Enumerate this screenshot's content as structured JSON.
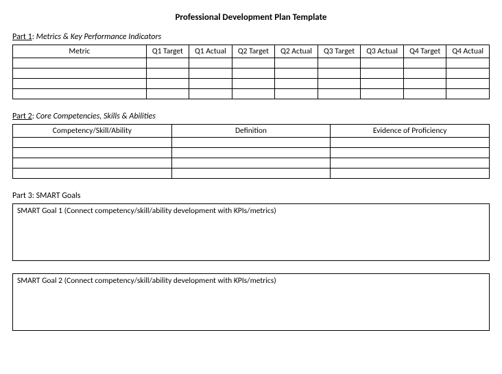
{
  "title": "Professional Development Plan Template",
  "part1": {
    "label": "Part 1",
    "desc": "Metrics & Key Performance Indicators",
    "columns": [
      "Metric",
      "Q1 Target",
      "Q1 Actual",
      "Q2 Target",
      "Q2 Actual",
      "Q3 Target",
      "Q3 Actual",
      "Q4 Target",
      "Q4 Actual"
    ],
    "rows": [
      [
        "",
        "",
        "",
        "",
        "",
        "",
        "",
        "",
        ""
      ],
      [
        "",
        "",
        "",
        "",
        "",
        "",
        "",
        "",
        ""
      ],
      [
        "",
        "",
        "",
        "",
        "",
        "",
        "",
        "",
        ""
      ],
      [
        "",
        "",
        "",
        "",
        "",
        "",
        "",
        "",
        ""
      ]
    ]
  },
  "part2": {
    "label": "Part 2",
    "desc": "Core Competencies, Skills & Abilities",
    "columns": [
      "Competency/Skill/Ability",
      "Definition",
      "Evidence of Proficiency"
    ],
    "rows": [
      [
        "",
        "",
        ""
      ],
      [
        "",
        "",
        ""
      ],
      [
        "",
        "",
        ""
      ],
      [
        "",
        "",
        ""
      ]
    ]
  },
  "part3": {
    "label": "Part 3",
    "desc": "SMART Goals",
    "goals": [
      {
        "header": "SMART Goal 1 (Connect competency/skill/ability development with KPIs/metrics)",
        "body": ""
      },
      {
        "header": "SMART Goal 2 (Connect competency/skill/ability development with KPIs/metrics)",
        "body": ""
      }
    ]
  },
  "style": {
    "background_color": "#ffffff",
    "text_color": "#000000",
    "border_color": "#000000",
    "title_fontsize": 13,
    "heading_fontsize": 12,
    "cell_fontsize": 11.5,
    "font_family": "Calibri"
  }
}
